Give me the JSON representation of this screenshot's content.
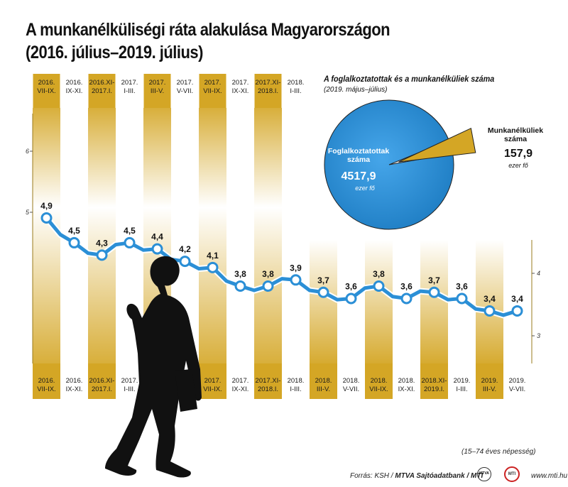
{
  "title_line1": "A munkanélküliségi ráta alakulása Magyarországon",
  "title_line2": "(2016. július–2019. július)",
  "chart_data": {
    "type": "line",
    "unit_note": "(15–74 éves népesség)",
    "yticks_left": [
      "6",
      "5"
    ],
    "yticks_right": [
      "4",
      "3"
    ],
    "y_left_range": [
      4.5,
      6
    ],
    "y_right_range": [
      3,
      4.5
    ],
    "categories": [
      "2016. VII-IX.",
      "2016. IX-XI.",
      "2016.XI-2017.I.",
      "2017. I-III.",
      "2017. III-V.",
      "2017. V-VII.",
      "2017. VII-IX.",
      "2017. IX-XI.",
      "2017.XI-2018.I.",
      "2018. I-III.",
      "2018. III-V.",
      "2018. V-VII.",
      "2018. VII-IX.",
      "2018. IX-XI.",
      "2018.XI-2019.I.",
      "2019. I-III.",
      "2019. III-V.",
      "2019. V-VII."
    ],
    "top_labels": [
      [
        "2016.",
        "VII-IX."
      ],
      [
        "2016.",
        "IX-XI."
      ],
      [
        "2016.XI-",
        "2017.I."
      ],
      [
        "2017.",
        "I-III."
      ],
      [
        "2017.",
        "III-V."
      ],
      [
        "2017.",
        "V-VII."
      ],
      [
        "2017.",
        "VII-IX."
      ],
      [
        "2017.",
        "IX-XI."
      ],
      [
        "2017.XI-",
        "2018.I."
      ],
      [
        "2018.",
        "I-III."
      ]
    ],
    "bottom_labels": [
      [
        "2016.",
        "VII-IX."
      ],
      [
        "2016.",
        "IX-XI."
      ],
      [
        "2016.XI-",
        "2017.I."
      ],
      [
        "2017.",
        "I-III."
      ],
      null,
      null,
      [
        "2017.",
        "VII-IX."
      ],
      [
        "2017.",
        "IX-XI."
      ],
      [
        "2017.XI-",
        "2018.I."
      ],
      [
        "2018.",
        "I-III."
      ],
      [
        "2018.",
        "III-V."
      ],
      [
        "2018.",
        "V-VII."
      ],
      [
        "2018.",
        "VII-IX."
      ],
      [
        "2018.",
        "IX-XI."
      ],
      [
        "2018.XI-",
        "2019.I."
      ],
      [
        "2019.",
        "I-III."
      ],
      [
        "2019.",
        "III-V."
      ],
      [
        "2019.",
        "V-VII."
      ]
    ],
    "values": [
      4.9,
      4.5,
      4.3,
      4.5,
      4.4,
      4.2,
      4.1,
      3.8,
      3.8,
      3.9,
      3.7,
      3.6,
      3.8,
      3.6,
      3.7,
      3.6,
      3.4,
      3.4
    ],
    "value_labels": [
      "4,9",
      "4,5",
      "4,3",
      "4,5",
      "4,4",
      "4,2",
      "4,1",
      "3,8",
      "3,8",
      "3,9",
      "3,7",
      "3,6",
      "3,8",
      "3,6",
      "3,7",
      "3,6",
      "3,4",
      "3,4"
    ],
    "line_color": "#2b8fd6",
    "band_color": "#d4a625",
    "pie": {
      "title": "A foglalkoztatottak és a munkanélküliek száma",
      "subtitle": "(2019. május–július)",
      "slices": [
        {
          "name_lines": [
            "Foglalkoztatottak",
            "száma"
          ],
          "value": 4517.9,
          "value_label": "4517,9",
          "unit": "ezer fő",
          "color": "#2b8fd6"
        },
        {
          "name_lines": [
            "Munkanélküliek",
            "száma"
          ],
          "value": 157.9,
          "value_label": "157,9",
          "unit": "ezer fő",
          "color": "#d4a625"
        }
      ]
    }
  },
  "footer": {
    "source": "Forrás: KSH / ",
    "source_bold": "MTVA Sajtóadatbank / MTI",
    "url": "www.mti.hu",
    "logo1": "MTVA",
    "logo2": "MTI"
  }
}
